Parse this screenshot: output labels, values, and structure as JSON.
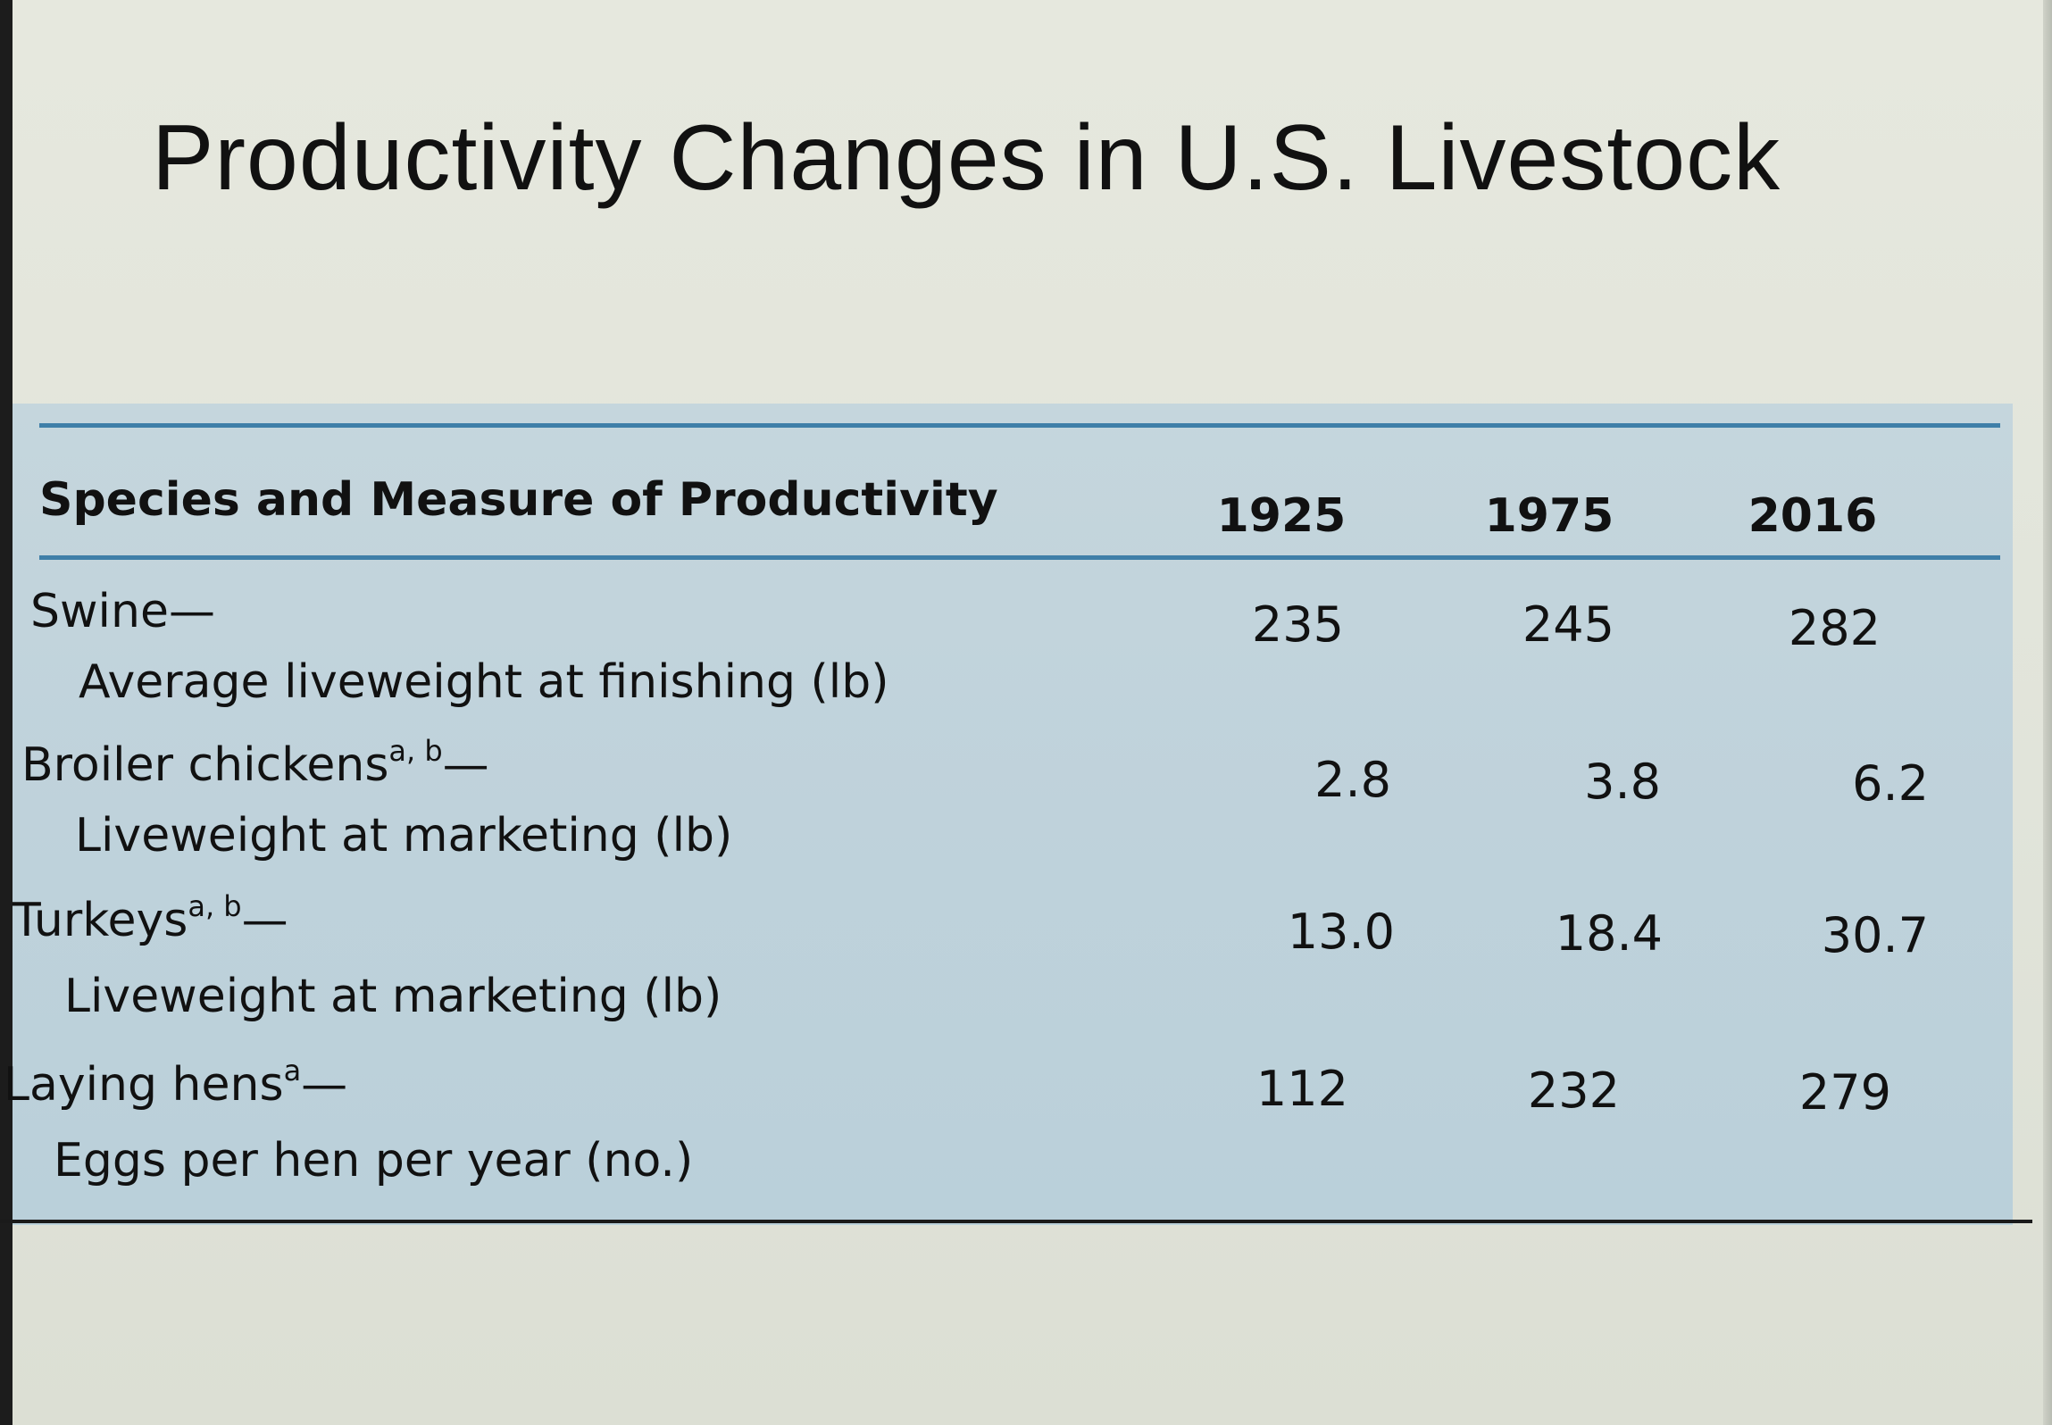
{
  "title": "Productivity Changes in U.S. Livestock",
  "table": {
    "header": {
      "species_label": "Species and Measure of Productivity",
      "years": [
        "1925",
        "1975",
        "2016"
      ]
    },
    "rows": [
      {
        "species": "Swine",
        "footnote": "",
        "dash": "—",
        "measure": "Average liveweight at finishing (lb)",
        "values": [
          "235",
          "245",
          "282"
        ]
      },
      {
        "species": "Broiler chickens",
        "footnote": "a, b",
        "dash": "—",
        "measure": "Liveweight at marketing (lb)",
        "values": [
          "2.8",
          "3.8",
          "6.2"
        ]
      },
      {
        "species": "Turkeys",
        "footnote": "a, b",
        "dash": "—",
        "measure": "Liveweight at marketing (lb)",
        "values": [
          "13.0",
          "18.4",
          "30.7"
        ]
      },
      {
        "species": "Laying hens",
        "footnote": "a",
        "dash": "—",
        "measure": "Eggs per hen per year (no.)",
        "values": [
          "112",
          "232",
          "279"
        ]
      }
    ]
  },
  "colors": {
    "panel_background": "#c0d3dc",
    "rule_blue": "#3f7fa8",
    "page_background": "#e3e5db"
  }
}
